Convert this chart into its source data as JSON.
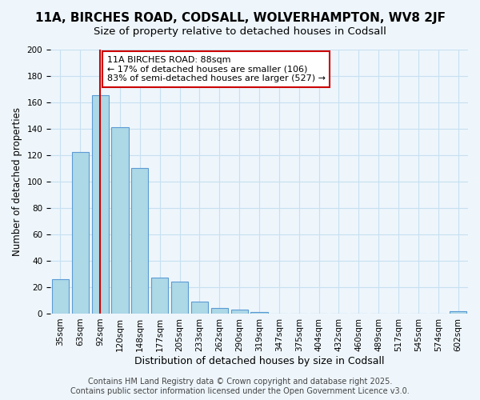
{
  "title": "11A, BIRCHES ROAD, CODSALL, WOLVERHAMPTON, WV8 2JF",
  "subtitle": "Size of property relative to detached houses in Codsall",
  "xlabel": "Distribution of detached houses by size in Codsall",
  "ylabel": "Number of detached properties",
  "bar_values": [
    26,
    122,
    165,
    141,
    110,
    27,
    24,
    9,
    4,
    3,
    1,
    0,
    0,
    0,
    0,
    0,
    0,
    0,
    0,
    0,
    2
  ],
  "bar_labels": [
    "35sqm",
    "63sqm",
    "92sqm",
    "120sqm",
    "148sqm",
    "177sqm",
    "205sqm",
    "233sqm",
    "262sqm",
    "290sqm",
    "319sqm",
    "347sqm",
    "375sqm",
    "404sqm",
    "432sqm",
    "460sqm",
    "489sqm",
    "517sqm",
    "545sqm",
    "574sqm",
    "602sqm"
  ],
  "bar_color": "#add8e6",
  "bar_edge_color": "#5b9bd5",
  "grid_color": "#c8e0f0",
  "background_color": "#eef6fc",
  "vline_x": 2,
  "vline_color": "#cc0000",
  "annotation_text": "11A BIRCHES ROAD: 88sqm\n← 17% of detached houses are smaller (106)\n83% of semi-detached houses are larger (527) →",
  "annotation_box_color": "#ffffff",
  "annotation_box_edge": "#cc0000",
  "ylim": [
    0,
    200
  ],
  "yticks": [
    0,
    20,
    40,
    60,
    80,
    100,
    120,
    140,
    160,
    180,
    200
  ],
  "footer_line1": "Contains HM Land Registry data © Crown copyright and database right 2025.",
  "footer_line2": "Contains public sector information licensed under the Open Government Licence v3.0.",
  "title_fontsize": 11,
  "subtitle_fontsize": 9.5,
  "xlabel_fontsize": 9,
  "ylabel_fontsize": 8.5,
  "tick_fontsize": 7.5,
  "footer_fontsize": 7,
  "ann_fontsize": 8
}
